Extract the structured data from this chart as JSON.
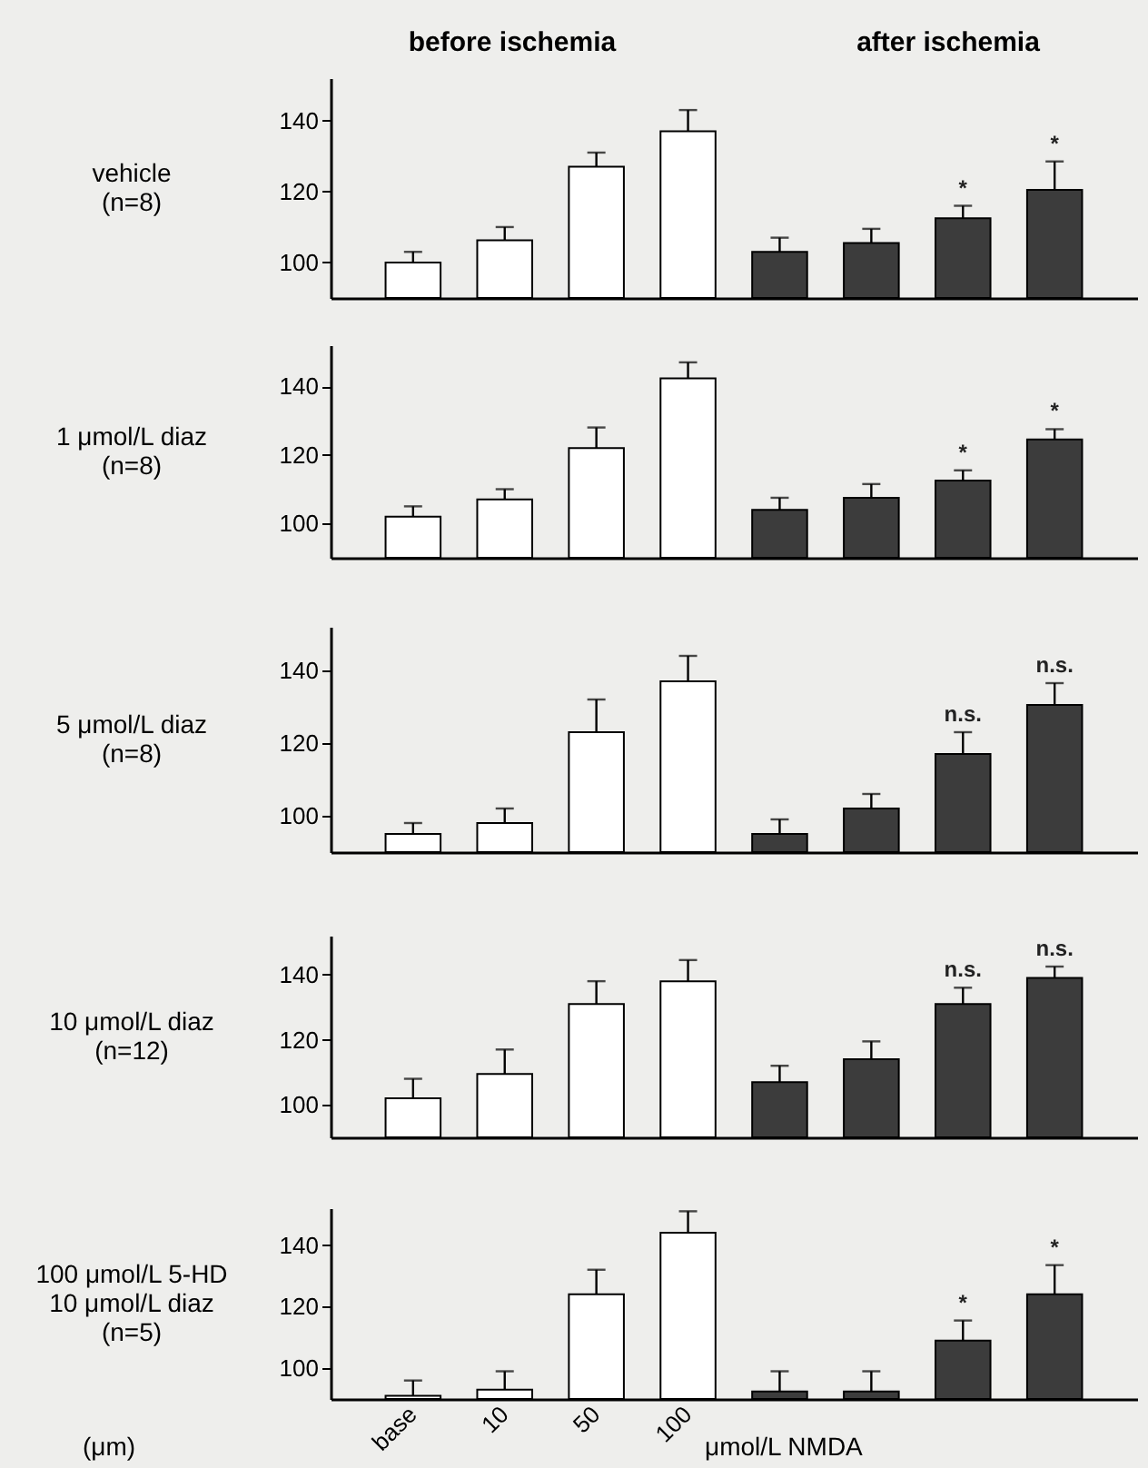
{
  "chart_data": [
    {
      "type": "bar",
      "ylabel": "vehicle\n(n=8)",
      "annotations": [
        "before ischemia",
        "after ischemia"
      ],
      "categories": [
        null,
        null,
        null,
        null,
        null,
        null,
        null,
        null
      ],
      "ylim": [
        90,
        152
      ],
      "yticks": [
        100,
        120,
        140
      ],
      "tick_labels": "y",
      "values": [
        100,
        106.3,
        127,
        137,
        103,
        105.5,
        112.5,
        120.5
      ],
      "colors": [
        "#ffffff",
        "#ffffff",
        "#ffffff",
        "#ffffff",
        "#3c3c3c",
        "#3c3c3c",
        "#3c3c3c",
        "#3c3c3c"
      ],
      "errors": [
        [
          100,
          103
        ],
        [
          106.3,
          110
        ],
        [
          127,
          131
        ],
        [
          137,
          143
        ],
        [
          103,
          107
        ],
        [
          105.5,
          109.5
        ],
        [
          112.5,
          116
        ],
        [
          120.5,
          128.5
        ]
      ],
      "value_labels": [
        null,
        null,
        null,
        null,
        null,
        null,
        "*",
        "*"
      ]
    },
    {
      "type": "bar",
      "ylabel": "1 μmol/L diaz\n(n=8)",
      "categories": [
        null,
        null,
        null,
        null,
        null,
        null,
        null,
        null
      ],
      "ylim": [
        90,
        152
      ],
      "yticks": [
        100,
        120,
        140
      ],
      "tick_labels": "y",
      "values": [
        102,
        107,
        122,
        142.3,
        104,
        107.5,
        112.5,
        124.5
      ],
      "colors": [
        "#ffffff",
        "#ffffff",
        "#ffffff",
        "#ffffff",
        "#3c3c3c",
        "#3c3c3c",
        "#3c3c3c",
        "#3c3c3c"
      ],
      "errors": [
        [
          102,
          105
        ],
        [
          107,
          110
        ],
        [
          122,
          128
        ],
        [
          142.3,
          147
        ],
        [
          104,
          107.5
        ],
        [
          107.5,
          111.5
        ],
        [
          112.5,
          115.5
        ],
        [
          124.5,
          127.5
        ]
      ],
      "value_labels": [
        null,
        null,
        null,
        null,
        null,
        null,
        "*",
        "*"
      ]
    },
    {
      "type": "bar",
      "ylabel": "5 μmol/L diaz\n(n=8)",
      "categories": [
        null,
        null,
        null,
        null,
        null,
        null,
        null,
        null
      ],
      "ylim": [
        90,
        152
      ],
      "yticks": [
        100,
        120,
        140
      ],
      "tick_labels": "y",
      "values": [
        95,
        98,
        123,
        137,
        95,
        102,
        117,
        130.5
      ],
      "colors": [
        "#ffffff",
        "#ffffff",
        "#ffffff",
        "#ffffff",
        "#3c3c3c",
        "#3c3c3c",
        "#3c3c3c",
        "#3c3c3c"
      ],
      "errors": [
        [
          95,
          98
        ],
        [
          98,
          102
        ],
        [
          123,
          132
        ],
        [
          137,
          144
        ],
        [
          95,
          99
        ],
        [
          102,
          106
        ],
        [
          117,
          123
        ],
        [
          130.5,
          136.5
        ]
      ],
      "value_labels": [
        null,
        null,
        null,
        null,
        null,
        null,
        "n.s.",
        "n.s."
      ]
    },
    {
      "type": "bar",
      "ylabel": "10 μmol/L diaz\n(n=12)",
      "categories": [
        null,
        null,
        null,
        null,
        null,
        null,
        null,
        null
      ],
      "ylim": [
        90,
        152
      ],
      "yticks": [
        100,
        120,
        140
      ],
      "tick_labels": "y",
      "values": [
        102,
        109.5,
        131,
        138,
        107,
        114,
        131,
        139
      ],
      "colors": [
        "#ffffff",
        "#ffffff",
        "#ffffff",
        "#ffffff",
        "#3c3c3c",
        "#3c3c3c",
        "#3c3c3c",
        "#3c3c3c"
      ],
      "errors": [
        [
          102,
          108
        ],
        [
          109.5,
          117
        ],
        [
          131,
          138
        ],
        [
          138,
          144.5
        ],
        [
          107,
          112
        ],
        [
          114,
          119.5
        ],
        [
          131,
          136
        ],
        [
          139,
          142.5
        ]
      ],
      "value_labels": [
        null,
        null,
        null,
        null,
        null,
        null,
        "n.s.",
        "n.s."
      ]
    },
    {
      "type": "bar",
      "ylabel": "100 μmol/L 5-HD\n10 μmol/L diaz\n(n=5)",
      "annotations": [
        "(μm)",
        "μmol/L NMDA"
      ],
      "categories": [
        "base",
        "10",
        "50",
        "100",
        null,
        null,
        null,
        null
      ],
      "ylim": [
        90,
        152
      ],
      "yticks": [
        100,
        120,
        140
      ],
      "values": [
        91,
        93,
        124,
        144,
        92.4,
        92.4,
        109,
        124
      ],
      "colors": [
        "#ffffff",
        "#ffffff",
        "#ffffff",
        "#ffffff",
        "#3c3c3c",
        "#3c3c3c",
        "#3c3c3c",
        "#3c3c3c"
      ],
      "errors": [
        [
          91,
          96
        ],
        [
          93,
          99
        ],
        [
          124,
          132
        ],
        [
          144,
          151
        ],
        [
          92.4,
          99
        ],
        [
          92.4,
          99
        ],
        [
          109,
          115.5
        ],
        [
          124,
          133.5
        ]
      ],
      "value_labels": [
        null,
        null,
        null,
        null,
        null,
        null,
        "*",
        "*"
      ]
    }
  ]
}
